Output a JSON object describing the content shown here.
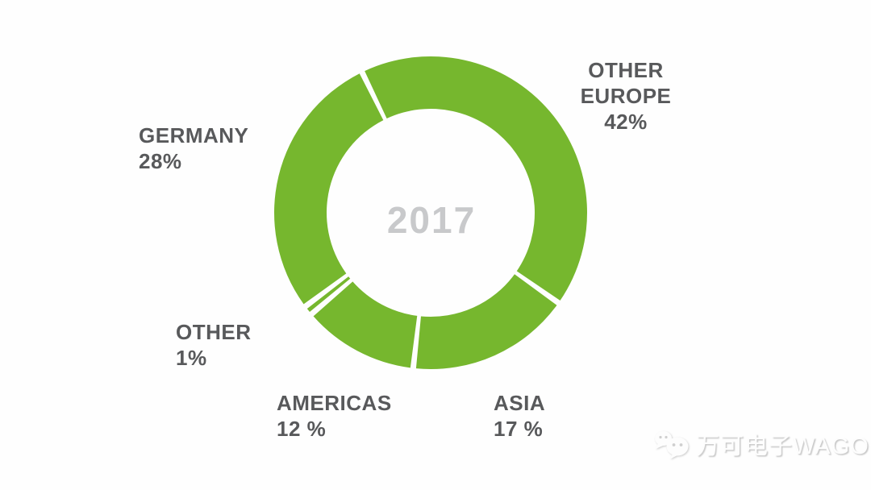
{
  "chart_data": {
    "type": "pie",
    "subtype": "donut",
    "title": "2017",
    "center_label": "2017",
    "unit": "%",
    "segments": [
      {
        "name": "OTHER EUROPE",
        "value": 42,
        "pct_label": "42%"
      },
      {
        "name": "ASIA",
        "value": 17,
        "pct_label": "17 %"
      },
      {
        "name": "AMERICAS",
        "value": 12,
        "pct_label": "12 %"
      },
      {
        "name": "OTHER",
        "value": 1,
        "pct_label": "1%"
      },
      {
        "name": "GERMANY",
        "value": 28,
        "pct_label": "28%"
      }
    ],
    "start_angle_deg": -26,
    "clockwise": true,
    "gap_degrees": 2.1,
    "segment_color": "#76b72e",
    "gap_color": "#ffffff",
    "label_color": "#58595b",
    "center_label_color": "#c8c9cb",
    "legend_position": "around"
  },
  "watermark": {
    "text": "万可电子WAGO",
    "icon": "wechat-icon",
    "color": "#fdfdfd"
  }
}
